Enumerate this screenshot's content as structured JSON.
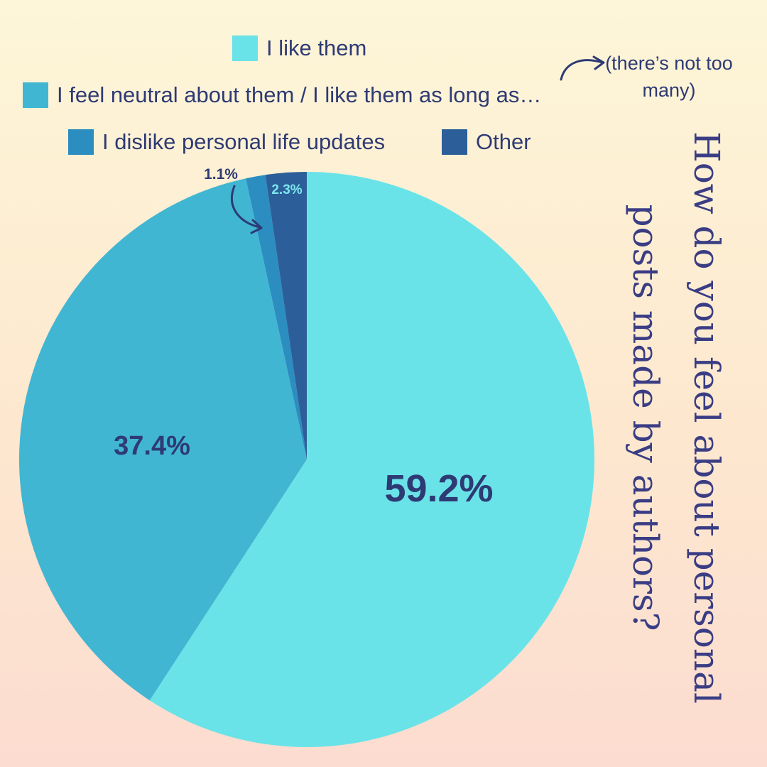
{
  "chart_data": {
    "type": "pie",
    "title": "How do you feel about personal posts made by authors?",
    "legend_position": "top",
    "series": [
      {
        "name": "I like them",
        "value": 59.2,
        "label": "59.2%",
        "color": "#6ae3e8"
      },
      {
        "name": "I feel neutral about them / I like them as long as…",
        "value": 37.4,
        "label": "37.4%",
        "color": "#41b6d3"
      },
      {
        "name": "I dislike personal life updates",
        "value": 1.1,
        "label": "1.1%",
        "color": "#2b8dc0"
      },
      {
        "name": "Other",
        "value": 2.3,
        "label": "2.3%",
        "color": "#2c5f99"
      }
    ]
  },
  "annotation": "(there’s not too many)"
}
